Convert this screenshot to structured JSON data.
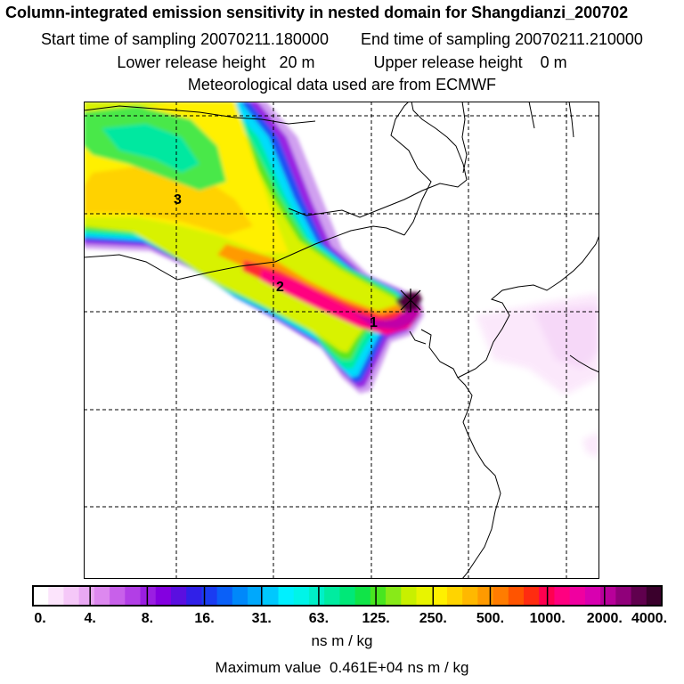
{
  "header": {
    "title": "Column-integrated emission sensitivity in nested domain for Shangdianzi_200702",
    "start_label": "Start time of sampling",
    "start_value": "20070211.180000",
    "end_label": "End time of sampling",
    "end_value": "20070211.210000",
    "lower_label": "Lower release height",
    "lower_value": "20 m",
    "upper_label": "Upper release height",
    "upper_value": "0 m",
    "met_line": "Meteorological data used are from ECMWF"
  },
  "map": {
    "labels": [
      "1",
      "2",
      "3"
    ],
    "release_marker": "receptor-cross"
  },
  "colorbar": {
    "ticks": [
      "0.",
      "4.",
      "8.",
      "16.",
      "31.",
      "63.",
      "125.",
      "250.",
      "500.",
      "1000.",
      "2000.",
      "4000."
    ],
    "colors": [
      "#ffffff",
      "#fce4fc",
      "#f5c8f8",
      "#e9a8f3",
      "#dd88ef",
      "#c860ea",
      "#b23ee6",
      "#9a1ee2",
      "#8400e0",
      "#5a0fe0",
      "#3020e8",
      "#1a3cf2",
      "#0a60f8",
      "#0088fa",
      "#00a8fc",
      "#00c8fd",
      "#00f0ff",
      "#00f4e8",
      "#00f0c8",
      "#00eca0",
      "#00e878",
      "#10e448",
      "#48e620",
      "#88ea18",
      "#c8f000",
      "#e8f400",
      "#fff000",
      "#ffd400",
      "#ffb800",
      "#ff9a00",
      "#ff7c00",
      "#ff5400",
      "#ff2c10",
      "#ff0050",
      "#ff0080",
      "#f000a0",
      "#d800b0",
      "#b8009a",
      "#90007a",
      "#60004e",
      "#3a002c"
    ],
    "unit": "ns m / kg"
  },
  "footer": {
    "max_label": "Maximum value",
    "max_value": "0.461E+04",
    "max_unit": "ns m / kg"
  }
}
